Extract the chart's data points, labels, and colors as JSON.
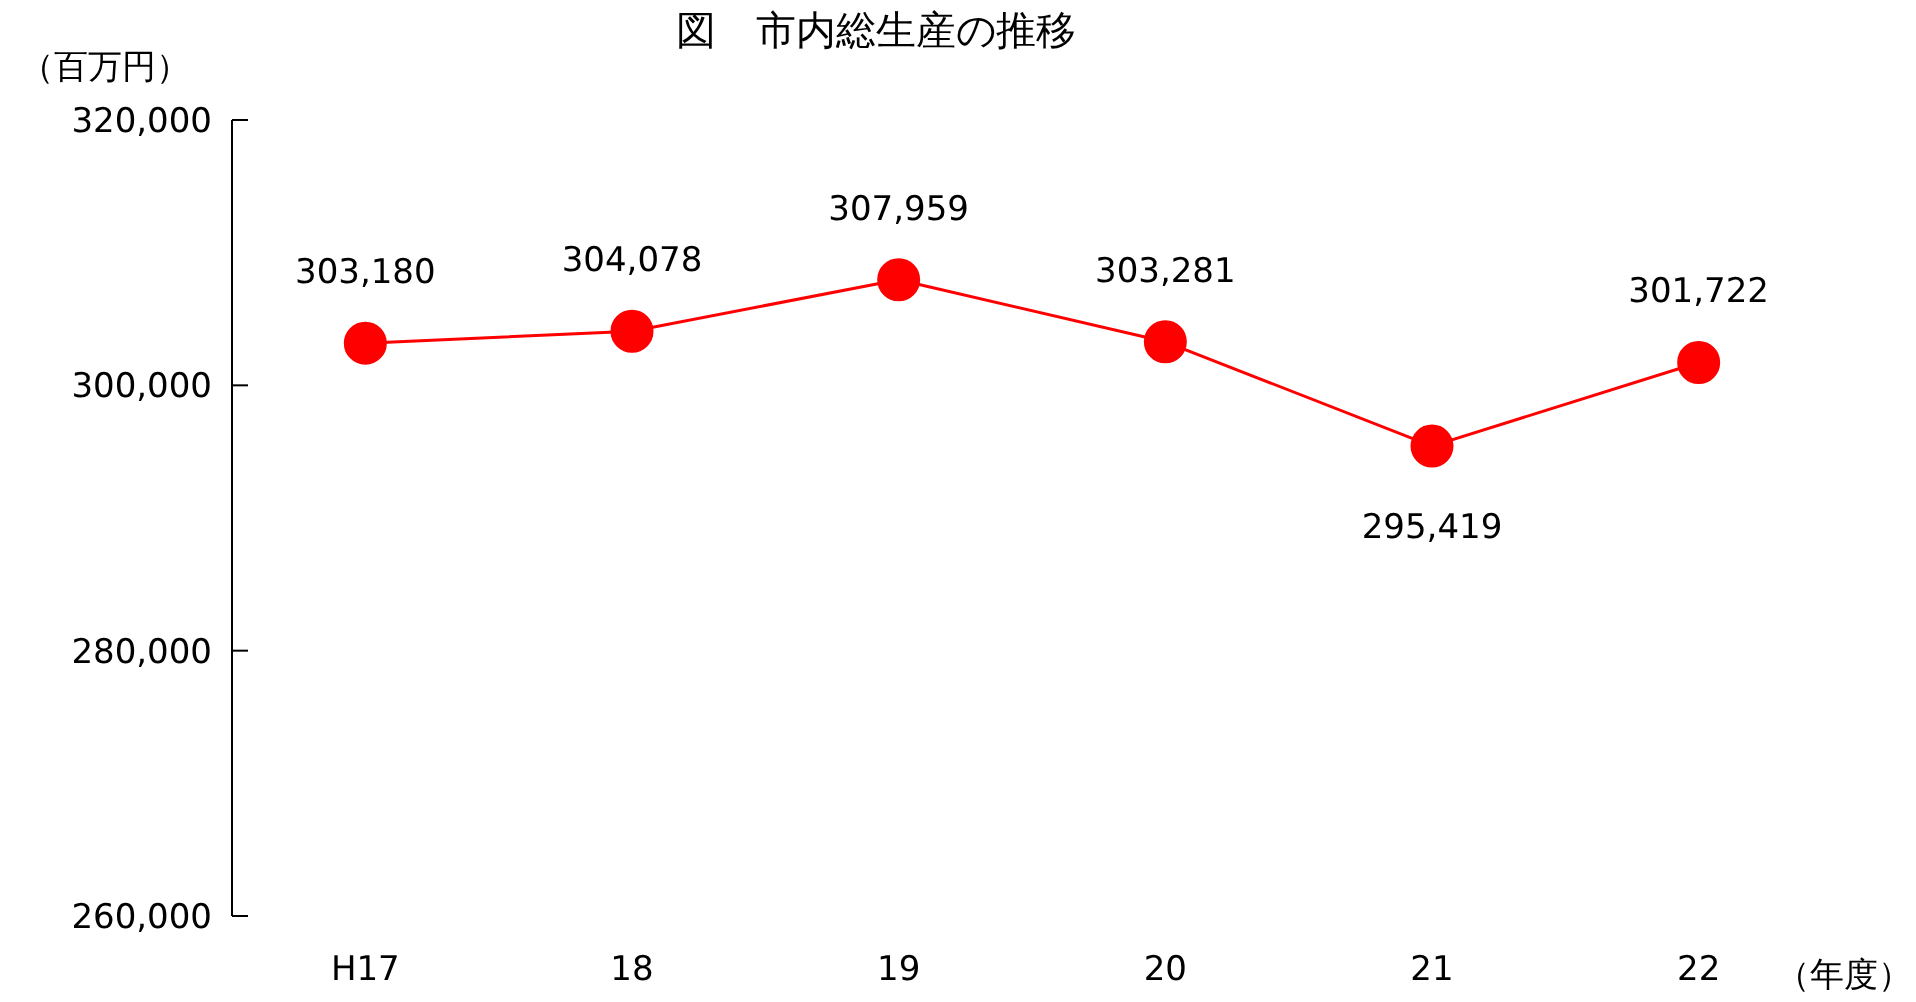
{
  "chart_data": {
    "type": "line",
    "title": "図　市内総生産の推移",
    "ylabel": "（百万円）",
    "xlabel": "（年度）",
    "categories": [
      "H17",
      "18",
      "19",
      "20",
      "21",
      "22"
    ],
    "series": [
      {
        "color": "#ff0000",
        "values": [
          303180,
          304078,
          307959,
          303281,
          295419,
          301722
        ],
        "value_labels": [
          "303,180",
          "304,078",
          "307,959",
          "303,281",
          "295,419",
          "301,722"
        ]
      }
    ],
    "ylim": [
      260000,
      320000
    ],
    "yticks": [
      {
        "value": 260000,
        "label": "260,000"
      },
      {
        "value": 280000,
        "label": "280,000"
      },
      {
        "value": 300000,
        "label": "300,000"
      },
      {
        "value": 320000,
        "label": "320,000"
      }
    ],
    "marker": "circle",
    "grid": false
  }
}
